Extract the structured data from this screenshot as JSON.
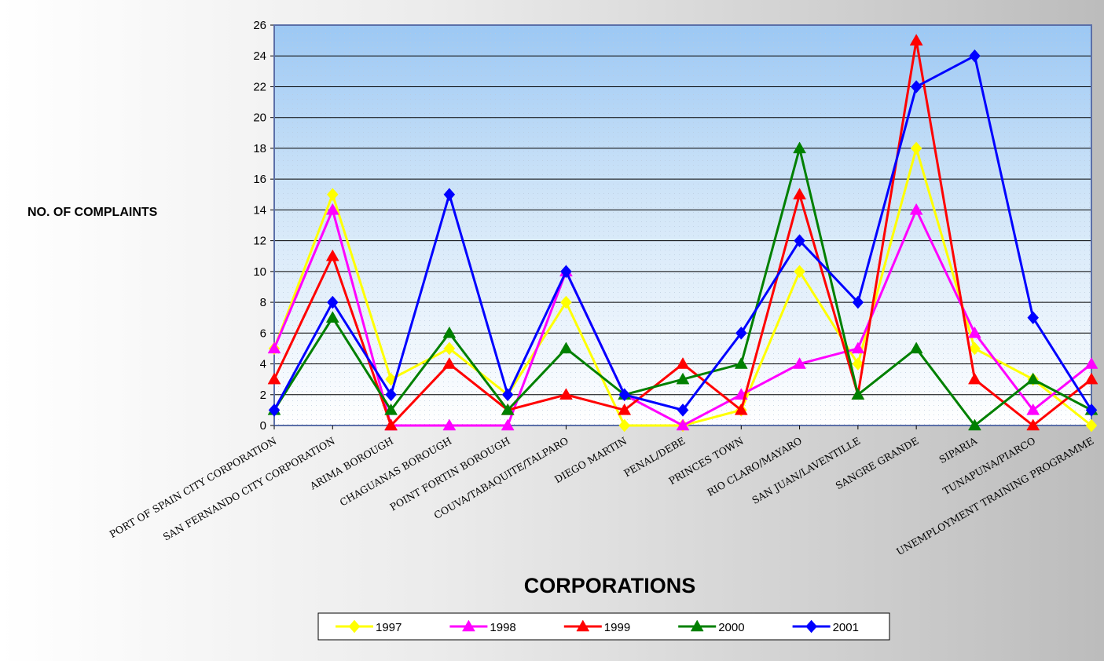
{
  "chart_data": {
    "type": "line",
    "title": "",
    "xlabel": "CORPORATIONS",
    "ylabel": "NO. OF COMPLAINTS",
    "ylim": [
      0,
      26
    ],
    "ytick_step": 2,
    "grid": true,
    "legend_position": "bottom",
    "categories": [
      "PORT OF SPAIN CITY CORPORATION",
      "SAN FERNANDO CITY CORPORATION",
      "ARIMA BOROUGH",
      "CHAGUANAS BOROUGH",
      "POINT FORTIN BOROUGH",
      "COUVA/TABAQUITE/TALPARO",
      "DIEGO MARTIN",
      "PENAL/DEBE",
      "PRINCES TOWN",
      "RIO CLARO/MAYARO",
      "SAN JUAN/LAVENTILLE",
      "SANGRE GRANDE",
      "SIPARIA",
      "TUNAPUNA/PIARCO",
      "UNEMPLOYMENT TRAINING PROGRAMME"
    ],
    "series": [
      {
        "name": "1997",
        "color": "#ffff00",
        "marker": "diamond",
        "values": [
          5,
          15,
          3,
          5,
          2,
          8,
          0,
          0,
          1,
          10,
          4,
          18,
          5,
          3,
          0
        ]
      },
      {
        "name": "1998",
        "color": "#ff00ff",
        "marker": "triangle",
        "values": [
          5,
          14,
          0,
          0,
          0,
          10,
          2,
          0,
          2,
          4,
          5,
          14,
          6,
          1,
          4
        ]
      },
      {
        "name": "1999",
        "color": "#ff0000",
        "marker": "triangle",
        "values": [
          3,
          11,
          0,
          4,
          1,
          2,
          1,
          4,
          1,
          15,
          2,
          25,
          3,
          0,
          3
        ]
      },
      {
        "name": "2000",
        "color": "#008000",
        "marker": "triangle",
        "values": [
          1,
          7,
          1,
          6,
          1,
          5,
          2,
          3,
          4,
          18,
          2,
          5,
          0,
          3,
          1
        ]
      },
      {
        "name": "2001",
        "color": "#0000ff",
        "marker": "diamond",
        "values": [
          1,
          8,
          2,
          15,
          2,
          10,
          2,
          1,
          6,
          12,
          8,
          22,
          24,
          7,
          1
        ]
      }
    ]
  }
}
